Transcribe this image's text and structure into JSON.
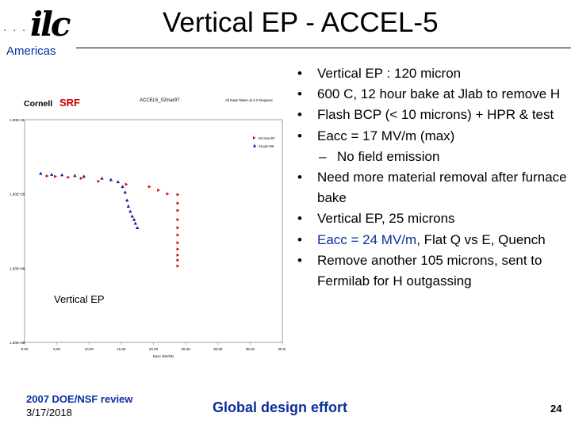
{
  "header": {
    "logo_dots": "· · · ·",
    "logo_mark": "ilc",
    "logo_region": "Americas",
    "title": "Vertical EP - ACCEL-5"
  },
  "colors": {
    "brand_blue": "#0b2f9c",
    "series1": "#cc0000",
    "series2": "#1a1aa6"
  },
  "chart": {
    "brand_a": "Cornell",
    "brand_b": "SRF",
    "chart_title": "ACCEL5_02mar97",
    "chart_note": "All Data Taken at 2.0 Degrees",
    "annotation": "Vertical EP"
  },
  "chart_data": {
    "type": "scatter",
    "xlabel": "Eacc (MV/M)",
    "x_ticks": [
      "0.00",
      "5.00",
      "10.00",
      "15.00",
      "20.00",
      "25.00",
      "30.00",
      "35.00",
      "40.00"
    ],
    "y_ticks": [
      "1.00E+11",
      "1.00E+10",
      "1.00E+09",
      "1.00E+08"
    ],
    "xlim": [
      0,
      40
    ],
    "ylog_range": [
      8,
      11
    ],
    "series": [
      {
        "name": "02-mar-97",
        "points": [
          [
            3.5,
            17400000000.0
          ],
          [
            4.8,
            17200000000.0
          ],
          [
            6.8,
            16800000000.0
          ],
          [
            8.8,
            16200000000.0
          ],
          [
            11.5,
            14800000000.0
          ],
          [
            15.8,
            13500000000.0
          ],
          [
            19.4,
            12500000000.0
          ],
          [
            20.8,
            11200000000.0
          ],
          [
            22.2,
            10000000000.0
          ],
          [
            23.8,
            9800000000.0
          ],
          [
            23.8,
            7500000000.0
          ],
          [
            23.8,
            6000000000.0
          ],
          [
            23.8,
            4500000000.0
          ],
          [
            23.8,
            3500000000.0
          ],
          [
            23.8,
            2800000000.0
          ],
          [
            23.8,
            2200000000.0
          ],
          [
            23.8,
            1800000000.0
          ],
          [
            23.8,
            1500000000.0
          ],
          [
            23.8,
            1280000000.0
          ],
          [
            23.8,
            1070000000.0
          ]
        ]
      },
      {
        "name": "16-jan-98",
        "points": [
          [
            2.5,
            18800000000.0
          ],
          [
            4.2,
            18200000000.0
          ],
          [
            5.8,
            18000000000.0
          ],
          [
            7.8,
            17600000000.0
          ],
          [
            9.2,
            17200000000.0
          ],
          [
            12.0,
            16200000000.0
          ],
          [
            13.4,
            15500000000.0
          ],
          [
            14.5,
            14500000000.0
          ],
          [
            15.2,
            12500000000.0
          ],
          [
            15.6,
            10500000000.0
          ],
          [
            15.9,
            8200000000.0
          ],
          [
            16.1,
            6800000000.0
          ],
          [
            16.4,
            5800000000.0
          ],
          [
            16.7,
            5000000000.0
          ],
          [
            17.0,
            4500000000.0
          ],
          [
            17.2,
            4000000000.0
          ],
          [
            17.5,
            3500000000.0
          ]
        ]
      }
    ]
  },
  "bullets": [
    {
      "text": "Vertical EP : 120 micron"
    },
    {
      "text": "600 C, 12 hour bake at Jlab to remove H"
    },
    {
      "text": "Flash BCP (< 10 microns) + HPR & test"
    },
    {
      "text": "Eacc = 17 MV/m (max)"
    },
    {
      "text": "No field emission",
      "sub": true
    },
    {
      "text": "Need more material removal after furnace bake"
    },
    {
      "text": "Vertical EP, 25 microns"
    },
    {
      "text_a": "Eacc = 24 MV/m",
      "text_b": ", Flat Q vs E, Quench"
    },
    {
      "text": "Remove another 105 microns, sent to Fermilab for H outgassing"
    }
  ],
  "footer": {
    "review": "2007 DOE/NSF review",
    "date": "3/17/2018",
    "center": "Global design effort",
    "page": "24"
  }
}
